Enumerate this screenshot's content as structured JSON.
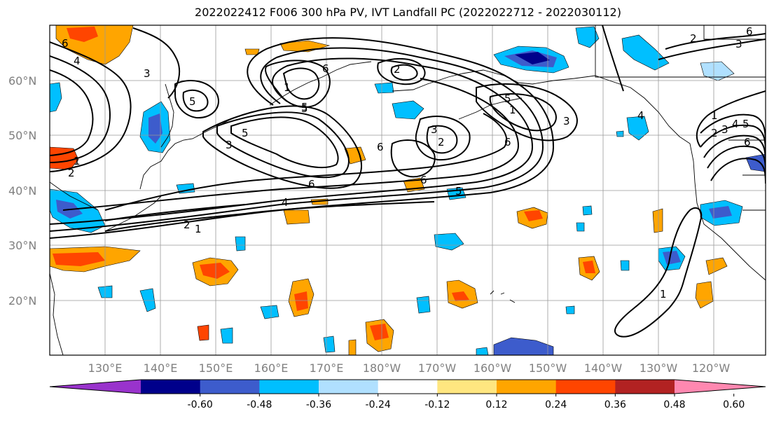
{
  "title": "2022022412 F006 300 hPa PV, IVT Landfall PC (2022022712 - 2022030112)",
  "lat_labels": [
    "60°N",
    "50°N",
    "40°N",
    "30°N",
    "20°N"
  ],
  "lon_labels": [
    "130°E",
    "140°E",
    "150°E",
    "160°E",
    "170°E",
    "180°W",
    "170°W",
    "160°W",
    "150°W",
    "140°W",
    "130°W",
    "120°W"
  ],
  "colorbar": {
    "colors": [
      "#9933cc",
      "#00008b",
      "#3d5ccc",
      "#00bfff",
      "#b0e0ff",
      "#ffffff",
      "#ffe680",
      "#ffa500",
      "#ff4500",
      "#b22222",
      "#ff88b0"
    ],
    "tick_labels": [
      "-0.60",
      "-0.48",
      "-0.36",
      "-0.24",
      "-0.12",
      "0.12",
      "0.24",
      "0.36",
      "0.48",
      "0.60"
    ]
  },
  "contour_labels": [
    "6",
    "4",
    "3",
    "5",
    "2",
    "1",
    "6",
    "2",
    "5",
    "3",
    "6",
    "3",
    "2",
    "6",
    "5",
    "1",
    "5",
    "3",
    "4",
    "2",
    "1",
    "1",
    "2",
    "3",
    "4",
    "5",
    "6",
    "1",
    "2",
    "3",
    "4",
    "6",
    "5",
    "6",
    "5",
    "1",
    "6"
  ]
}
